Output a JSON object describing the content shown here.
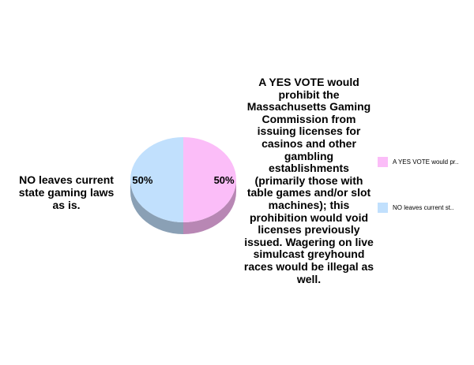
{
  "chart_data": {
    "type": "pie",
    "categories": [
      "A YES VOTE would prohibit the Massachusetts Gaming Commission from issuing licenses for casinos and other gambling establishments (primarily those with table games and/or slot machines); this prohibition would void licenses previously issued. Wagering on live simulcast greyhound races would be illegal as well.",
      "NO leaves current state gaming laws as is."
    ],
    "values": [
      50,
      50
    ],
    "data_labels": [
      "50%",
      "50%"
    ],
    "legend": {
      "position": "right",
      "entries": [
        " A YES VOTE would pr..",
        "NO leaves current st.."
      ]
    },
    "colors": [
      "#fbbdf8",
      "#c1e0fd"
    ],
    "side_colors": [
      "#b887b4",
      "#8aa0b5"
    ],
    "style": "3d"
  }
}
